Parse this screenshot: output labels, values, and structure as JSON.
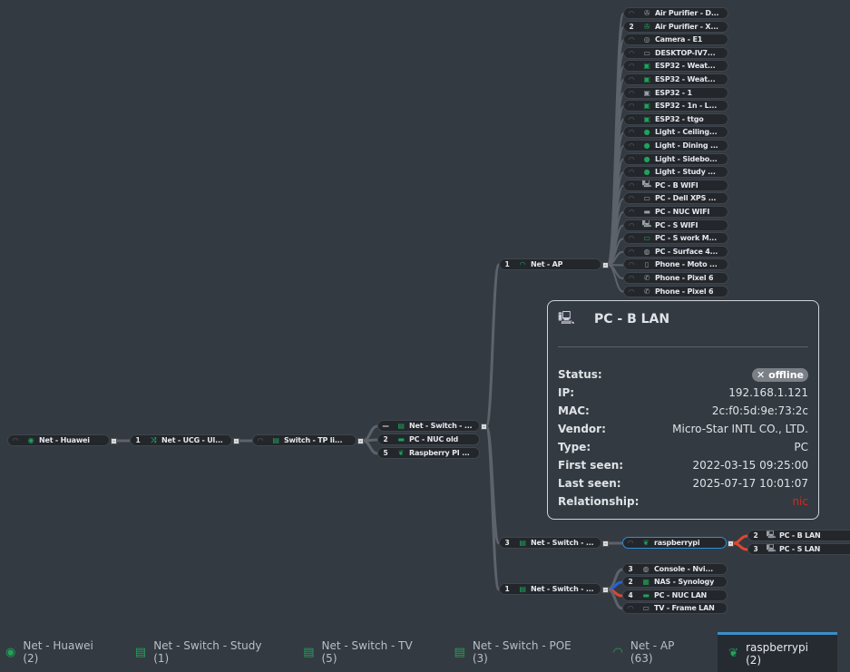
{
  "colors": {
    "accent_green": "#1fa35a",
    "selected_border": "#2f8fd8",
    "edge_red": "#e0472f",
    "edge_blue": "#1e64e0",
    "edge_grey": "#5e636b",
    "relationship_red": "#d02b20"
  },
  "nodes": [
    {
      "id": "huawei",
      "badge": "wifi",
      "icon": "globe-icon",
      "label": "Net - Huawei",
      "collapse": true
    },
    {
      "id": "ucg",
      "badge": "1",
      "icon": "shuffle-icon",
      "label": "Net - UCG - Ul...",
      "collapse": true
    },
    {
      "id": "tplink",
      "badge": "wifi",
      "icon": "switch-icon",
      "label": "Switch - TP li...",
      "collapse": true
    },
    {
      "id": "sw1",
      "badge": "—",
      "icon": "switch-icon",
      "label": "Net - Switch - ...",
      "collapse": true
    },
    {
      "id": "nucold",
      "badge": "2",
      "icon": "nuc-icon",
      "label": "PC - NUC old"
    },
    {
      "id": "rpi1",
      "badge": "5",
      "icon": "raspberry-icon",
      "label": "Raspberry PI ..."
    },
    {
      "id": "ap",
      "badge": "1",
      "icon": "wifi-icon",
      "label": "Net - AP",
      "collapse": true
    },
    {
      "id": "sw2",
      "badge": "3",
      "icon": "switch-icon",
      "label": "Net - Switch - ...",
      "collapse": true
    },
    {
      "id": "rpi",
      "badge": "wifi",
      "icon": "raspberry-icon",
      "label": "raspberrypi",
      "collapse": true,
      "selected": true
    },
    {
      "id": "blan",
      "badge": "2",
      "icon": "desktop-tower-icon",
      "label": "PC - B LAN"
    },
    {
      "id": "slan",
      "badge": "3",
      "icon": "desktop-tower-icon",
      "label": "PC - S LAN"
    },
    {
      "id": "sw3",
      "badge": "1",
      "icon": "switch-icon",
      "label": "Net - Switch - ...",
      "collapse": true
    },
    {
      "id": "console",
      "badge": "3",
      "icon": "gamepad-icon",
      "label": "Console - Nvi..."
    },
    {
      "id": "nas",
      "badge": "2",
      "icon": "nas-icon",
      "label": "NAS - Synology"
    },
    {
      "id": "nuclan",
      "badge": "4",
      "icon": "nuc-icon",
      "label": "PC - NUC LAN"
    },
    {
      "id": "tv",
      "badge": "wifi",
      "icon": "tv-icon",
      "label": "TV - Frame LAN"
    }
  ],
  "ap_clients": [
    {
      "badge": "wifi",
      "icon": "fan-icon",
      "label": "Air Purifier - D..."
    },
    {
      "badge": "2",
      "icon": "fan-icon",
      "label": "Air Purifier - X...",
      "green": true
    },
    {
      "badge": "wifi",
      "icon": "webcam-icon",
      "label": "Camera - E1"
    },
    {
      "badge": "wifi",
      "icon": "monitor-icon",
      "label": "DESKTOP-IV7..."
    },
    {
      "badge": "wifi",
      "icon": "chip-icon",
      "label": "ESP32 - Weat...",
      "green": true
    },
    {
      "badge": "wifi",
      "icon": "chip-icon",
      "label": "ESP32 - Weat...",
      "green": true
    },
    {
      "badge": "wifi",
      "icon": "chip-icon",
      "label": "ESP32 - 1"
    },
    {
      "badge": "wifi",
      "icon": "chip-icon",
      "label": "ESP32 - 1n - L...",
      "green": true
    },
    {
      "badge": "wifi",
      "icon": "chip-icon",
      "label": "ESP32 - ttgo",
      "green": true
    },
    {
      "badge": "wifi",
      "icon": "bulb-icon",
      "label": "Light - Ceiling...",
      "green": true
    },
    {
      "badge": "wifi",
      "icon": "bulb-icon",
      "label": "Light - Dining ...",
      "green": true
    },
    {
      "badge": "wifi",
      "icon": "bulb-icon",
      "label": "Light - Sidebo...",
      "green": true
    },
    {
      "badge": "wifi",
      "icon": "bulb-icon",
      "label": "Light - Study ...",
      "green": true
    },
    {
      "badge": "wifi",
      "icon": "desktop-tower-icon",
      "label": "PC - B WIFI"
    },
    {
      "badge": "wifi",
      "icon": "monitor-icon",
      "label": "PC - Dell XPS ..."
    },
    {
      "badge": "wifi",
      "icon": "nuc-icon",
      "label": "PC - NUC WIFI"
    },
    {
      "badge": "wifi",
      "icon": "desktop-tower-icon",
      "label": "PC - S WIFI"
    },
    {
      "badge": "wifi",
      "icon": "monitor-icon",
      "label": "PC - S work M...",
      "green": true
    },
    {
      "badge": "wifi",
      "icon": "gamepad-icon",
      "label": "PC - Surface 4..."
    },
    {
      "badge": "wifi",
      "icon": "phone-icon",
      "label": "Phone - Moto ..."
    },
    {
      "badge": "wifi",
      "icon": "handset-icon",
      "label": "Phone - Pixel 6"
    },
    {
      "badge": "wifi",
      "icon": "handset-icon",
      "label": "Phone - Pixel 6"
    }
  ],
  "tooltip": {
    "icon": "desktop-tower-icon",
    "title": "PC - B LAN",
    "rows": [
      {
        "key": "Status:",
        "value": "offline",
        "status": true,
        "status_icon": "✕"
      },
      {
        "key": "IP:",
        "value": "192.168.1.121"
      },
      {
        "key": "MAC:",
        "value": "2c:f0:5d:9e:73:2c"
      },
      {
        "key": "Vendor:",
        "value": "Micro-Star INTL CO., LTD."
      },
      {
        "key": "Type:",
        "value": "PC"
      },
      {
        "key": "First seen:",
        "value": "2022-03-15 09:25:00"
      },
      {
        "key": "Last seen:",
        "value": "2025-07-17 10:01:07"
      },
      {
        "key": "Relationship:",
        "value": "nic",
        "red": true
      }
    ]
  },
  "tabs": [
    {
      "icon": "globe-icon",
      "label": "Net - Huawei (2)"
    },
    {
      "icon": "switch-icon",
      "label": "Net - Switch - Study (1)"
    },
    {
      "icon": "switch-icon",
      "label": "Net - Switch - TV (5)"
    },
    {
      "icon": "switch-icon",
      "label": "Net - Switch - POE (3)"
    },
    {
      "icon": "wifi-icon",
      "label": "Net - AP (63)"
    },
    {
      "icon": "raspberry-icon",
      "label": "raspberrypi (2)",
      "active": true
    }
  ]
}
